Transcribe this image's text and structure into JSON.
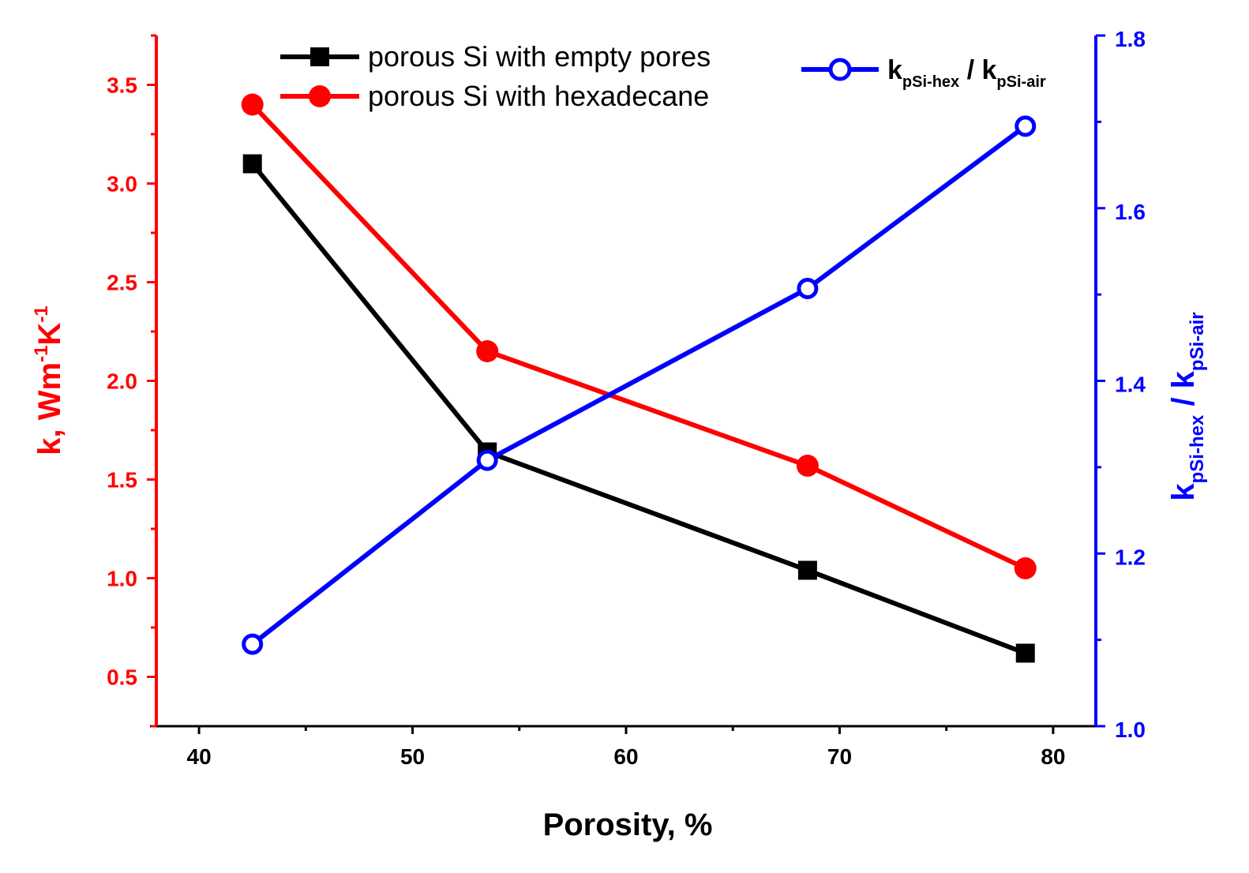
{
  "chart_data": {
    "type": "line",
    "x": [
      42.5,
      53.5,
      68.5,
      78.7
    ],
    "xlabel": "Porosity, %",
    "xlim": [
      38,
      82
    ],
    "xticks": [
      40,
      50,
      60,
      70,
      80
    ],
    "xtick_labels": [
      "40",
      "50",
      "60",
      "70",
      "80"
    ],
    "left_axis": {
      "label_main": "k, Wm",
      "label_sup1": "-1",
      "label_mid": "K",
      "label_sup2": "-1",
      "ylim": [
        0.25,
        3.75
      ],
      "ticks": [
        0.5,
        1.0,
        1.5,
        2.0,
        2.5,
        3.0,
        3.5
      ],
      "tick_labels": [
        "0.5",
        "1.0",
        "1.5",
        "2.0",
        "2.5",
        "3.0",
        "3.5"
      ],
      "color": "#ff0000"
    },
    "right_axis": {
      "label_k1": "k",
      "label_sub1": "pSi-hex",
      "label_sep": " / k",
      "label_sub2": "pSi-air",
      "ylim": [
        1.0,
        1.8
      ],
      "ticks": [
        1.0,
        1.2,
        1.4,
        1.6,
        1.8
      ],
      "tick_labels": [
        "1.0",
        "1.2",
        "1.4",
        "1.6",
        "1.8"
      ],
      "color": "#0000ff"
    },
    "series": [
      {
        "name": "porous Si with empty pores",
        "axis": "left",
        "color": "#000000",
        "marker": "square",
        "values": [
          3.1,
          1.64,
          1.04,
          0.62
        ]
      },
      {
        "name": "porous Si with hexadecane",
        "axis": "left",
        "color": "#ff0000",
        "marker": "circle",
        "values": [
          3.4,
          2.15,
          1.57,
          1.05
        ]
      },
      {
        "name": "k_pSi-hex / k_pSi-air",
        "axis": "right",
        "color": "#0000ff",
        "marker": "open-circle",
        "values": [
          1.095,
          1.308,
          1.507,
          1.695
        ]
      }
    ],
    "legend": {
      "empty_label": "porous Si with empty pores",
      "hex_label": "porous Si with hexadecane",
      "ratio_k1": "k",
      "ratio_sub1": "pSi-hex",
      "ratio_sep": " / k",
      "ratio_sub2": "pSi-air"
    }
  }
}
